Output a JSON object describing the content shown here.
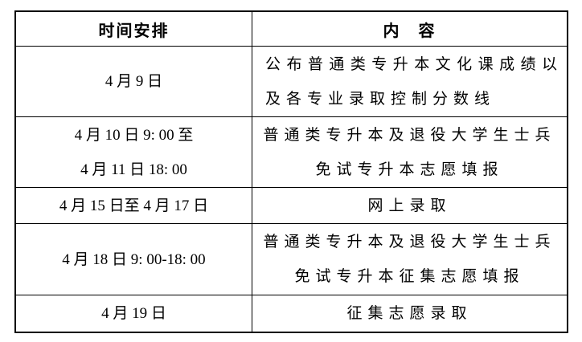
{
  "colors": {
    "border": "#000000",
    "text": "#000000",
    "background": "#ffffff"
  },
  "table": {
    "header": {
      "time": "时间安排",
      "content": "内　容"
    },
    "rows": [
      {
        "time_lines": [
          "4 月 9 日"
        ],
        "content_lines": [
          "公布普通类专升本文化课成绩以",
          "及各专业录取控制分数线"
        ]
      },
      {
        "time_lines": [
          "4 月 10 日 9: 00 至",
          "4 月 11 日 18: 00"
        ],
        "content_lines": [
          "普通类专升本及退役大学生士兵",
          "免试专升本志愿填报"
        ]
      },
      {
        "time_lines": [
          "4 月 15 日至 4 月 17 日"
        ],
        "content_lines": [
          "网上录取"
        ]
      },
      {
        "time_lines": [
          "4 月 18 日 9: 00-18: 00"
        ],
        "content_lines": [
          "普通类专升本及退役大学生士兵",
          "免试专升本征集志愿填报"
        ]
      },
      {
        "time_lines": [
          "4 月 19 日"
        ],
        "content_lines": [
          "征集志愿录取"
        ]
      }
    ]
  }
}
